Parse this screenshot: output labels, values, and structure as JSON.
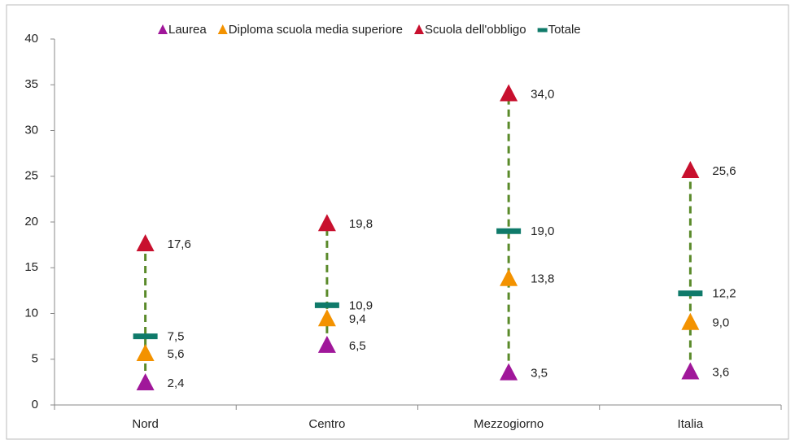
{
  "chart_data": {
    "type": "dot",
    "categories": [
      "Nord",
      "Centro",
      "Mezzogiorno",
      "Italia"
    ],
    "series": [
      {
        "name": "Laurea",
        "color": "#a0179a",
        "marker": "triangle",
        "values": [
          2.4,
          6.5,
          3.5,
          3.6
        ],
        "value_labels": [
          "2,4",
          "6,5",
          "3,5",
          "3,6"
        ]
      },
      {
        "name": "Diploma scuola media superiore",
        "color": "#f39200",
        "marker": "triangle",
        "values": [
          5.6,
          9.4,
          13.8,
          9.0
        ],
        "value_labels": [
          "5,6",
          "9,4",
          "13,8",
          "9,0"
        ]
      },
      {
        "name": "Scuola dell'obbligo",
        "color": "#c8102e",
        "marker": "triangle",
        "values": [
          17.6,
          19.8,
          34.0,
          25.6
        ],
        "value_labels": [
          "17,6",
          "19,8",
          "34,0",
          "25,6"
        ]
      },
      {
        "name": "Totale",
        "color": "#0f7a6a",
        "marker": "dash",
        "values": [
          7.5,
          10.9,
          19.0,
          12.2
        ],
        "value_labels": [
          "7,5",
          "10,9",
          "19,0",
          "12,2"
        ]
      }
    ],
    "range_color": "#5a8a2a",
    "ylim": [
      0,
      40
    ],
    "yticks": [
      0,
      5,
      10,
      15,
      20,
      25,
      30,
      35,
      40
    ],
    "legend": "top"
  }
}
